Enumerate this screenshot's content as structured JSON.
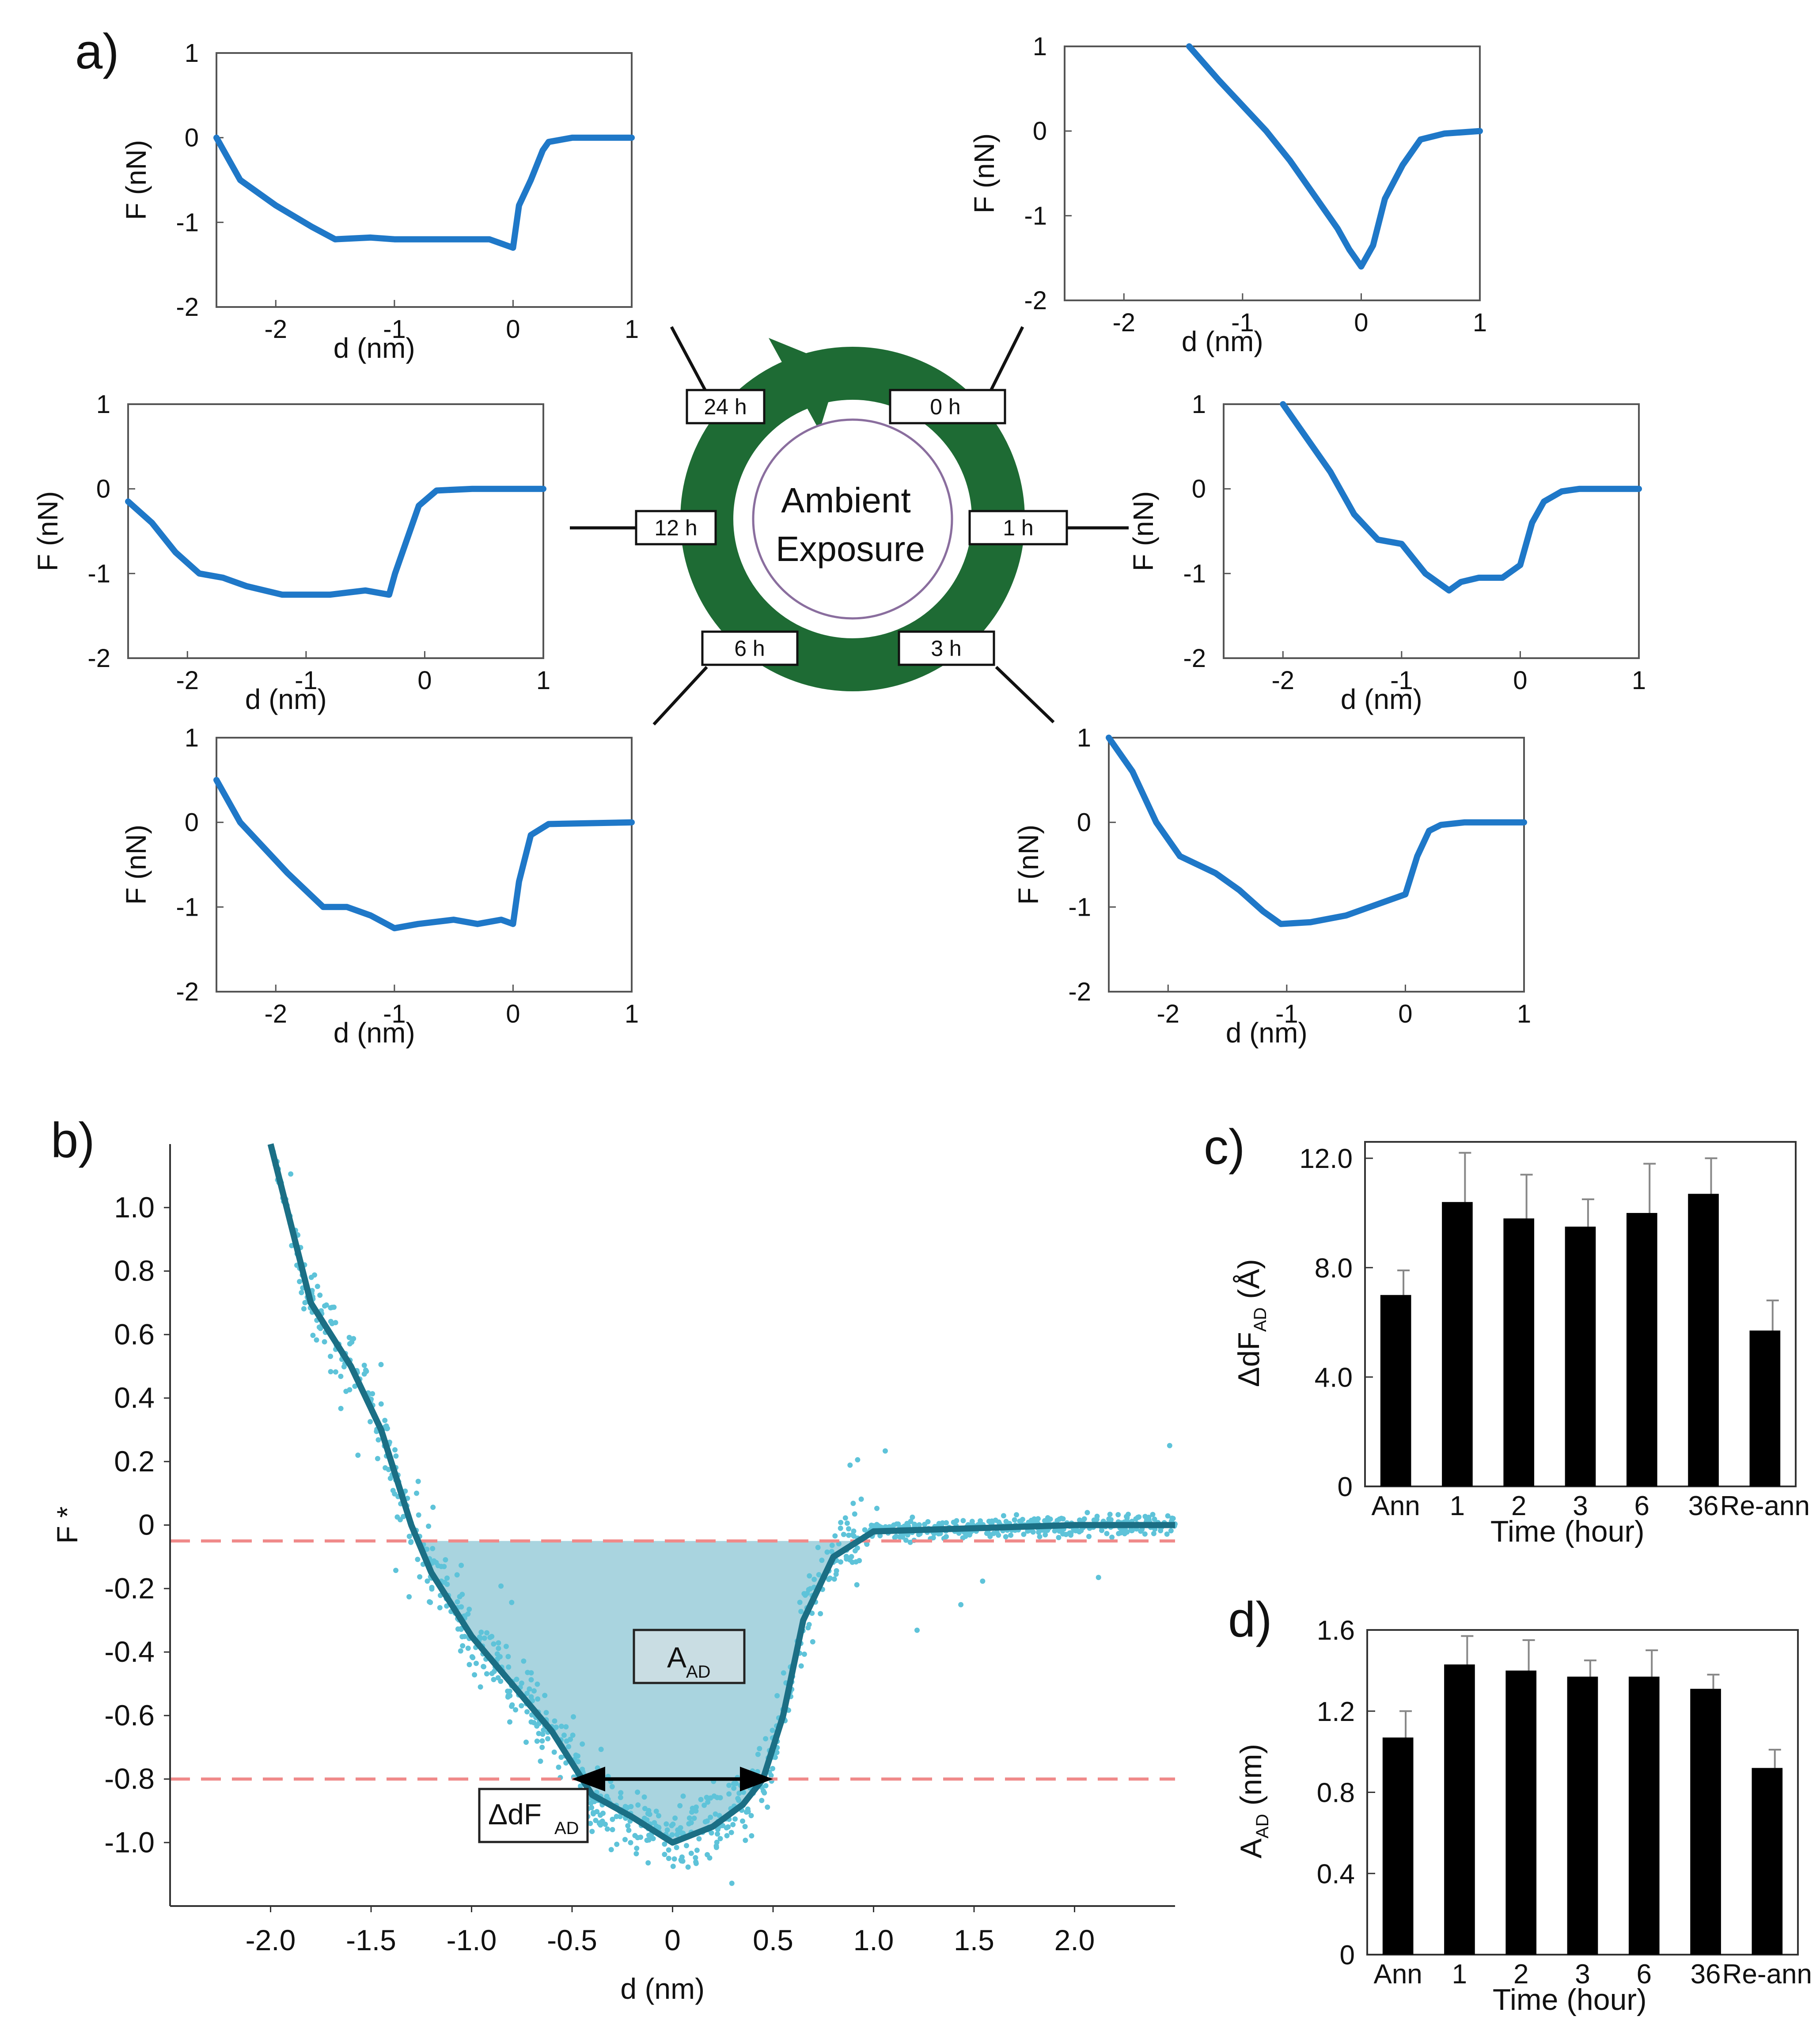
{
  "figure": {
    "panel_labels": [
      "a)",
      "b)",
      "c)",
      "d)"
    ],
    "cycle": {
      "center_line1": "Ambient",
      "center_line2": "Exposure",
      "labels": [
        "24 h",
        "0 h",
        "12 h",
        "1 h",
        "6 h",
        "3 h"
      ]
    },
    "annotations": {
      "area_label": "A",
      "area_sub": "AD",
      "width_label": "ΔdF",
      "width_sub": "AD"
    }
  },
  "colors": {
    "curve_a": "#1f78c8",
    "curve_b": "#1b6f85",
    "scatter_b": "#5ec3d9",
    "fill_b": "#a9d4df",
    "dash_b": "#f08a8a",
    "cycle_green": "#1e6b34",
    "bar": "#000000"
  },
  "chart_data": [
    {
      "id": "a-24h",
      "type": "line",
      "timepoint": "24 h",
      "xlabel": "d (nm)",
      "ylabel": "F (nN)",
      "xlim": [
        -2.5,
        1
      ],
      "ylim": [
        -2,
        1
      ],
      "xticks": [
        "-2",
        "-1",
        "0",
        "1"
      ],
      "yticks": [
        "1",
        "0",
        "-1",
        "-2"
      ],
      "series": [
        {
          "name": "F",
          "x": [
            -2.5,
            -2.3,
            -2.0,
            -1.7,
            -1.5,
            -1.2,
            -1.0,
            -0.8,
            -0.5,
            -0.2,
            0.0,
            0.05,
            0.15,
            0.25,
            0.3,
            0.5,
            1.0
          ],
          "y": [
            0.0,
            -0.5,
            -0.8,
            -1.05,
            -1.2,
            -1.18,
            -1.2,
            -1.2,
            -1.2,
            -1.2,
            -1.3,
            -0.8,
            -0.5,
            -0.15,
            -0.05,
            0.0,
            0.0
          ]
        }
      ]
    },
    {
      "id": "a-0h",
      "type": "line",
      "timepoint": "0 h",
      "xlabel": "d (nm)",
      "ylabel": "F (nN)",
      "xlim": [
        -2.5,
        1
      ],
      "ylim": [
        -2,
        1
      ],
      "xticks": [
        "-2",
        "-1",
        "0",
        "1"
      ],
      "yticks": [
        "1",
        "0",
        "-1",
        "-2"
      ],
      "series": [
        {
          "name": "F",
          "x": [
            -1.45,
            -1.2,
            -1.0,
            -0.8,
            -0.6,
            -0.4,
            -0.2,
            -0.1,
            0.0,
            0.1,
            0.2,
            0.35,
            0.5,
            0.7,
            1.0
          ],
          "y": [
            1.0,
            0.6,
            0.3,
            0.0,
            -0.35,
            -0.75,
            -1.15,
            -1.4,
            -1.6,
            -1.35,
            -0.8,
            -0.4,
            -0.1,
            -0.03,
            0.0
          ]
        }
      ]
    },
    {
      "id": "a-12h",
      "type": "line",
      "timepoint": "12 h",
      "xlabel": "d (nm)",
      "ylabel": "F (nN)",
      "xlim": [
        -2.5,
        1
      ],
      "ylim": [
        -2,
        1
      ],
      "xticks": [
        "-2",
        "-1",
        "0",
        "1"
      ],
      "yticks": [
        "1",
        "0",
        "-1",
        "-2"
      ],
      "series": [
        {
          "name": "F",
          "x": [
            -2.5,
            -2.3,
            -2.1,
            -1.9,
            -1.7,
            -1.5,
            -1.2,
            -1.0,
            -0.8,
            -0.5,
            -0.3,
            -0.25,
            -0.15,
            -0.05,
            0.1,
            0.4,
            1.0
          ],
          "y": [
            -0.15,
            -0.4,
            -0.75,
            -1.0,
            -1.05,
            -1.15,
            -1.25,
            -1.25,
            -1.25,
            -1.2,
            -1.25,
            -1.0,
            -0.6,
            -0.2,
            -0.02,
            0.0,
            0.0
          ]
        }
      ]
    },
    {
      "id": "a-1h",
      "type": "line",
      "timepoint": "1 h",
      "xlabel": "d (nm)",
      "ylabel": "F (nN)",
      "xlim": [
        -2.5,
        1
      ],
      "ylim": [
        -2,
        1
      ],
      "xticks": [
        "-2",
        "-1",
        "0",
        "1"
      ],
      "yticks": [
        "1",
        "0",
        "-1",
        "-2"
      ],
      "series": [
        {
          "name": "F",
          "x": [
            -2.0,
            -1.8,
            -1.6,
            -1.4,
            -1.2,
            -1.0,
            -0.8,
            -0.6,
            -0.5,
            -0.35,
            -0.15,
            0.0,
            0.1,
            0.2,
            0.35,
            0.5,
            1.0
          ],
          "y": [
            1.0,
            0.6,
            0.2,
            -0.3,
            -0.6,
            -0.65,
            -1.0,
            -1.2,
            -1.1,
            -1.05,
            -1.05,
            -0.9,
            -0.4,
            -0.15,
            -0.03,
            0.0,
            0.0
          ]
        }
      ]
    },
    {
      "id": "a-6h",
      "type": "line",
      "timepoint": "6 h",
      "xlabel": "d (nm)",
      "ylabel": "F (nN)",
      "xlim": [
        -2.5,
        1
      ],
      "ylim": [
        -2,
        1
      ],
      "xticks": [
        "-2",
        "-1",
        "0",
        "1"
      ],
      "yticks": [
        "1",
        "0",
        "-1",
        "-2"
      ],
      "series": [
        {
          "name": "F",
          "x": [
            -2.5,
            -2.3,
            -2.1,
            -1.9,
            -1.6,
            -1.4,
            -1.2,
            -1.0,
            -0.8,
            -0.5,
            -0.3,
            -0.1,
            0.0,
            0.05,
            0.15,
            0.3,
            1.0
          ],
          "y": [
            0.5,
            0.0,
            -0.3,
            -0.6,
            -1.0,
            -1.0,
            -1.1,
            -1.25,
            -1.2,
            -1.15,
            -1.2,
            -1.15,
            -1.2,
            -0.7,
            -0.15,
            -0.02,
            0.0
          ]
        }
      ]
    },
    {
      "id": "a-3h",
      "type": "line",
      "timepoint": "3 h",
      "xlabel": "d (nm)",
      "ylabel": "F (nN)",
      "xlim": [
        -2.5,
        1
      ],
      "ylim": [
        -2,
        1
      ],
      "xticks": [
        "-2",
        "-1",
        "0",
        "1"
      ],
      "yticks": [
        "1",
        "0",
        "-1",
        "-2"
      ],
      "series": [
        {
          "name": "F",
          "x": [
            -2.5,
            -2.3,
            -2.1,
            -1.9,
            -1.6,
            -1.4,
            -1.2,
            -1.05,
            -0.8,
            -0.5,
            -0.3,
            0.0,
            0.1,
            0.2,
            0.3,
            0.5,
            1.0
          ],
          "y": [
            1.0,
            0.6,
            0.0,
            -0.4,
            -0.6,
            -0.8,
            -1.05,
            -1.2,
            -1.18,
            -1.1,
            -1.0,
            -0.85,
            -0.4,
            -0.1,
            -0.03,
            0.0,
            0.0
          ]
        }
      ]
    },
    {
      "id": "b",
      "type": "line",
      "xlabel": "d (nm)",
      "ylabel": "F *",
      "xlim": [
        -2.5,
        2.5
      ],
      "ylim": [
        -1.2,
        1.2
      ],
      "xticks": [
        "-2.0",
        "-1.5",
        "-1.0",
        "-0.5",
        "0",
        "0.5",
        "1.0",
        "1.5",
        "2.0"
      ],
      "yticks": [
        "1.0",
        "0.8",
        "0.6",
        "0.4",
        "0.2",
        "0",
        "-0.2",
        "-0.4",
        "-0.6",
        "-0.8",
        "-1.0"
      ],
      "series": [
        {
          "name": "mean F*",
          "x": [
            -2.0,
            -1.9,
            -1.8,
            -1.6,
            -1.45,
            -1.3,
            -1.2,
            -1.0,
            -0.8,
            -0.6,
            -0.4,
            -0.2,
            0.0,
            0.2,
            0.35,
            0.45,
            0.55,
            0.65,
            0.8,
            1.0,
            1.5,
            2.0,
            2.5
          ],
          "y": [
            1.2,
            0.95,
            0.7,
            0.5,
            0.3,
            0.0,
            -0.15,
            -0.35,
            -0.5,
            -0.65,
            -0.85,
            -0.92,
            -1.0,
            -0.95,
            -0.88,
            -0.8,
            -0.6,
            -0.3,
            -0.1,
            -0.02,
            -0.01,
            0.0,
            0.0
          ]
        }
      ],
      "thresholds": [
        -0.05,
        -0.8
      ],
      "delta_span": [
        -0.5,
        0.5
      ]
    },
    {
      "id": "c",
      "type": "bar",
      "xlabel": "Time (hour)",
      "ylabel": "ΔdF",
      "ylabel_sub": "AD",
      "ylabel_unit": " (Å)",
      "categories": [
        "Ann",
        "1",
        "2",
        "3",
        "6",
        "36",
        "Re-ann"
      ],
      "values": [
        7.0,
        10.4,
        9.8,
        9.5,
        10.0,
        10.7,
        5.7
      ],
      "errors": [
        0.9,
        1.8,
        1.6,
        1.0,
        1.8,
        1.3,
        1.1
      ],
      "ylim": [
        0,
        12.6
      ],
      "yticks": [
        "0",
        "4.0",
        "8.0",
        "12.0"
      ]
    },
    {
      "id": "d",
      "type": "bar",
      "xlabel": "Time (hour)",
      "ylabel": "A",
      "ylabel_sub": "AD",
      "ylabel_unit": " (nm)",
      "categories": [
        "Ann",
        "1",
        "2",
        "3",
        "6",
        "36",
        "Re-ann"
      ],
      "values": [
        1.07,
        1.43,
        1.4,
        1.37,
        1.37,
        1.31,
        0.92
      ],
      "errors": [
        0.13,
        0.14,
        0.15,
        0.08,
        0.13,
        0.07,
        0.09
      ],
      "ylim": [
        0,
        1.6
      ],
      "yticks": [
        "0",
        "0.4",
        "0.8",
        "1.2",
        "1.6"
      ]
    }
  ]
}
